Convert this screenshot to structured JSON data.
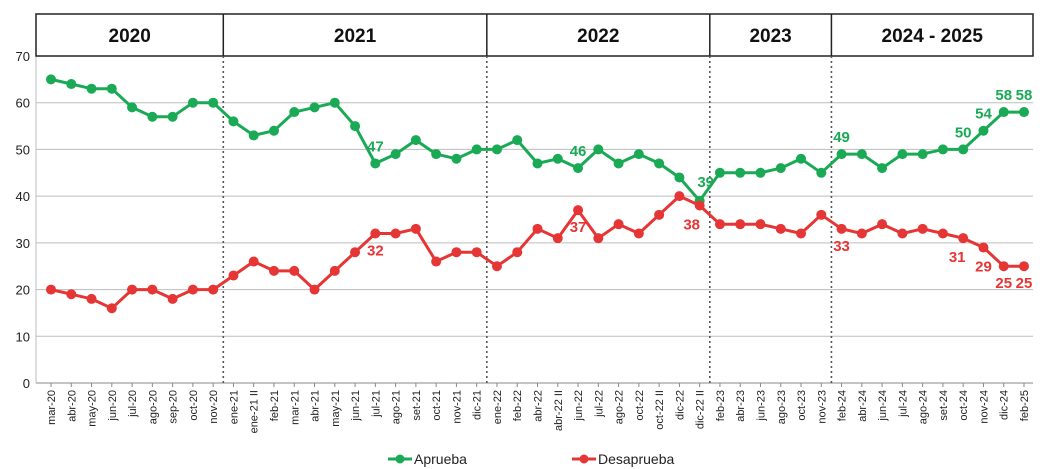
{
  "chart_data": {
    "type": "line",
    "ylim": [
      0,
      70
    ],
    "yticks": [
      0,
      10,
      20,
      30,
      40,
      50,
      60,
      70
    ],
    "grid": true,
    "legend": "bottom-center",
    "periods": [
      {
        "label": "2020",
        "start": 0,
        "end": 9
      },
      {
        "label": "2021",
        "start": 9,
        "end": 22
      },
      {
        "label": "2022",
        "start": 22,
        "end": 33
      },
      {
        "label": "2023",
        "start": 33,
        "end": 39
      },
      {
        "label": "2024 - 2025",
        "start": 39,
        "end": 49
      }
    ],
    "categories": [
      "mar-20",
      "abr-20",
      "may-20",
      "jun-20",
      "jul-20",
      "ago-20",
      "sep-20",
      "oct-20",
      "nov-20",
      "ene-21",
      "ene-21 II",
      "feb-21",
      "mar-21",
      "abr-21",
      "may-21",
      "jun-21",
      "jul-21",
      "ago-21",
      "set-21",
      "oct-21",
      "nov-21",
      "dic-21",
      "ene-22",
      "feb-22",
      "abr-22",
      "abr-22 II",
      "jun-22",
      "jul-22",
      "ago-22",
      "oct-22",
      "oct-22 II",
      "dic-22",
      "dic-22 II",
      "feb-23",
      "abr-23",
      "jun-23",
      "ago-23",
      "oct-23",
      "nov-23",
      "feb-24",
      "abr-24",
      "jun-24",
      "jul-24",
      "ago-24",
      "set-24",
      "oct-24",
      "nov-24",
      "dic-24",
      "feb-25"
    ],
    "series": [
      {
        "name": "Aprueba",
        "color": "#1aaa55",
        "values": [
          65,
          64,
          63,
          63,
          59,
          57,
          57,
          60,
          60,
          56,
          53,
          54,
          58,
          59,
          60,
          55,
          47,
          49,
          52,
          49,
          48,
          50,
          50,
          52,
          47,
          48,
          46,
          50,
          47,
          49,
          47,
          44,
          39,
          45,
          45,
          45,
          46,
          48,
          45,
          49,
          49,
          46,
          49,
          49,
          50,
          50,
          54,
          58,
          58
        ],
        "labels": [
          {
            "index": 16,
            "text": "47"
          },
          {
            "index": 26,
            "text": "46"
          },
          {
            "index": 32,
            "text": "39"
          },
          {
            "index": 39,
            "text": "49"
          },
          {
            "index": 45,
            "text": "50"
          },
          {
            "index": 46,
            "text": "54"
          },
          {
            "index": 47,
            "text": "58"
          },
          {
            "index": 48,
            "text": "58"
          }
        ]
      },
      {
        "name": "Desaprueba",
        "color": "#e63535",
        "values": [
          20,
          19,
          18,
          16,
          20,
          20,
          18,
          20,
          20,
          23,
          26,
          24,
          24,
          20,
          24,
          28,
          32,
          32,
          33,
          26,
          28,
          28,
          25,
          28,
          33,
          31,
          37,
          31,
          34,
          32,
          36,
          40,
          38,
          34,
          34,
          34,
          33,
          32,
          36,
          33,
          32,
          34,
          32,
          33,
          32,
          31,
          29,
          25,
          25
        ],
        "labels": [
          {
            "index": 16,
            "text": "32"
          },
          {
            "index": 26,
            "text": "37"
          },
          {
            "index": 32,
            "text": "38"
          },
          {
            "index": 39,
            "text": "33"
          },
          {
            "index": 45,
            "text": "31"
          },
          {
            "index": 46,
            "text": "29"
          },
          {
            "index": 47,
            "text": "25"
          },
          {
            "index": 48,
            "text": "25"
          }
        ]
      }
    ]
  }
}
